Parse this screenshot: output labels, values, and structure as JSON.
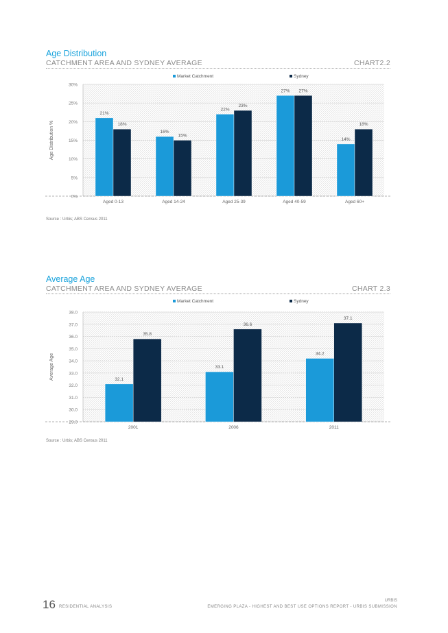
{
  "charts": [
    {
      "title": "Age Distribution",
      "subtitle": "CATCHMENT AREA AND SYDNEY AVERAGE",
      "chart_number": "CHART2.2",
      "source": "Source : Urbis; ABS Census 2011"
    },
    {
      "title": "Average Age",
      "subtitle": "CATCHMENT AREA AND SYDNEY AVERAGE",
      "chart_number": "CHART 2.3",
      "source": "Source : Urbis; ABS Census 2011"
    }
  ],
  "colors": {
    "market": "#1b9ad9",
    "sydney": "#0c2a48",
    "title": "#1aa3dc"
  },
  "chart_data": [
    {
      "type": "bar",
      "categories": [
        "Aged 0-13",
        "Aged 14-24",
        "Aged 25-39",
        "Aged 40-59",
        "Aged 60+"
      ],
      "series": [
        {
          "name": "Market Catchment",
          "values": [
            21,
            16,
            22,
            27,
            14
          ],
          "labels": [
            "21%",
            "16%",
            "22%",
            "27%",
            "14%"
          ]
        },
        {
          "name": "Sydney",
          "values": [
            18,
            15,
            23,
            27,
            18
          ],
          "labels": [
            "18%",
            "15%",
            "23%",
            "27%",
            "18%"
          ]
        }
      ],
      "ylabel": "Age Distribution %",
      "ylim": [
        0,
        30
      ],
      "yticks": [
        0,
        5,
        10,
        15,
        20,
        25,
        30
      ],
      "ytick_labels": [
        "0%",
        "5%",
        "10%",
        "15%",
        "20%",
        "25%",
        "30%"
      ],
      "legend_position": "top-center",
      "grid": true
    },
    {
      "type": "bar",
      "categories": [
        "2001",
        "2006",
        "2011"
      ],
      "series": [
        {
          "name": "Market Catchment",
          "values": [
            32.1,
            33.1,
            34.2
          ],
          "labels": [
            "32.1",
            "33.1",
            "34.2"
          ]
        },
        {
          "name": "Sydney",
          "values": [
            35.8,
            36.6,
            37.1
          ],
          "labels": [
            "35.8",
            "36.6",
            "37.1"
          ]
        }
      ],
      "ylabel": "Average Age",
      "ylim": [
        29.0,
        38.0
      ],
      "yticks": [
        29,
        30,
        31,
        32,
        33,
        34,
        35,
        36,
        37,
        38
      ],
      "ytick_labels": [
        "29.0",
        "30.0",
        "31.0",
        "32.0",
        "33.0",
        "34.0",
        "35.0",
        "36.0",
        "37.0",
        "38.0"
      ],
      "legend_position": "top-center",
      "grid": true
    }
  ],
  "footer": {
    "page_number": "16",
    "section": "RESIDENTIAL ANALYSIS",
    "brand": "URBIS",
    "document": "EMERGING PLAZA - HIGHEST AND BEST USE OPTIONS REPORT - URBIS SUBMISSION"
  }
}
